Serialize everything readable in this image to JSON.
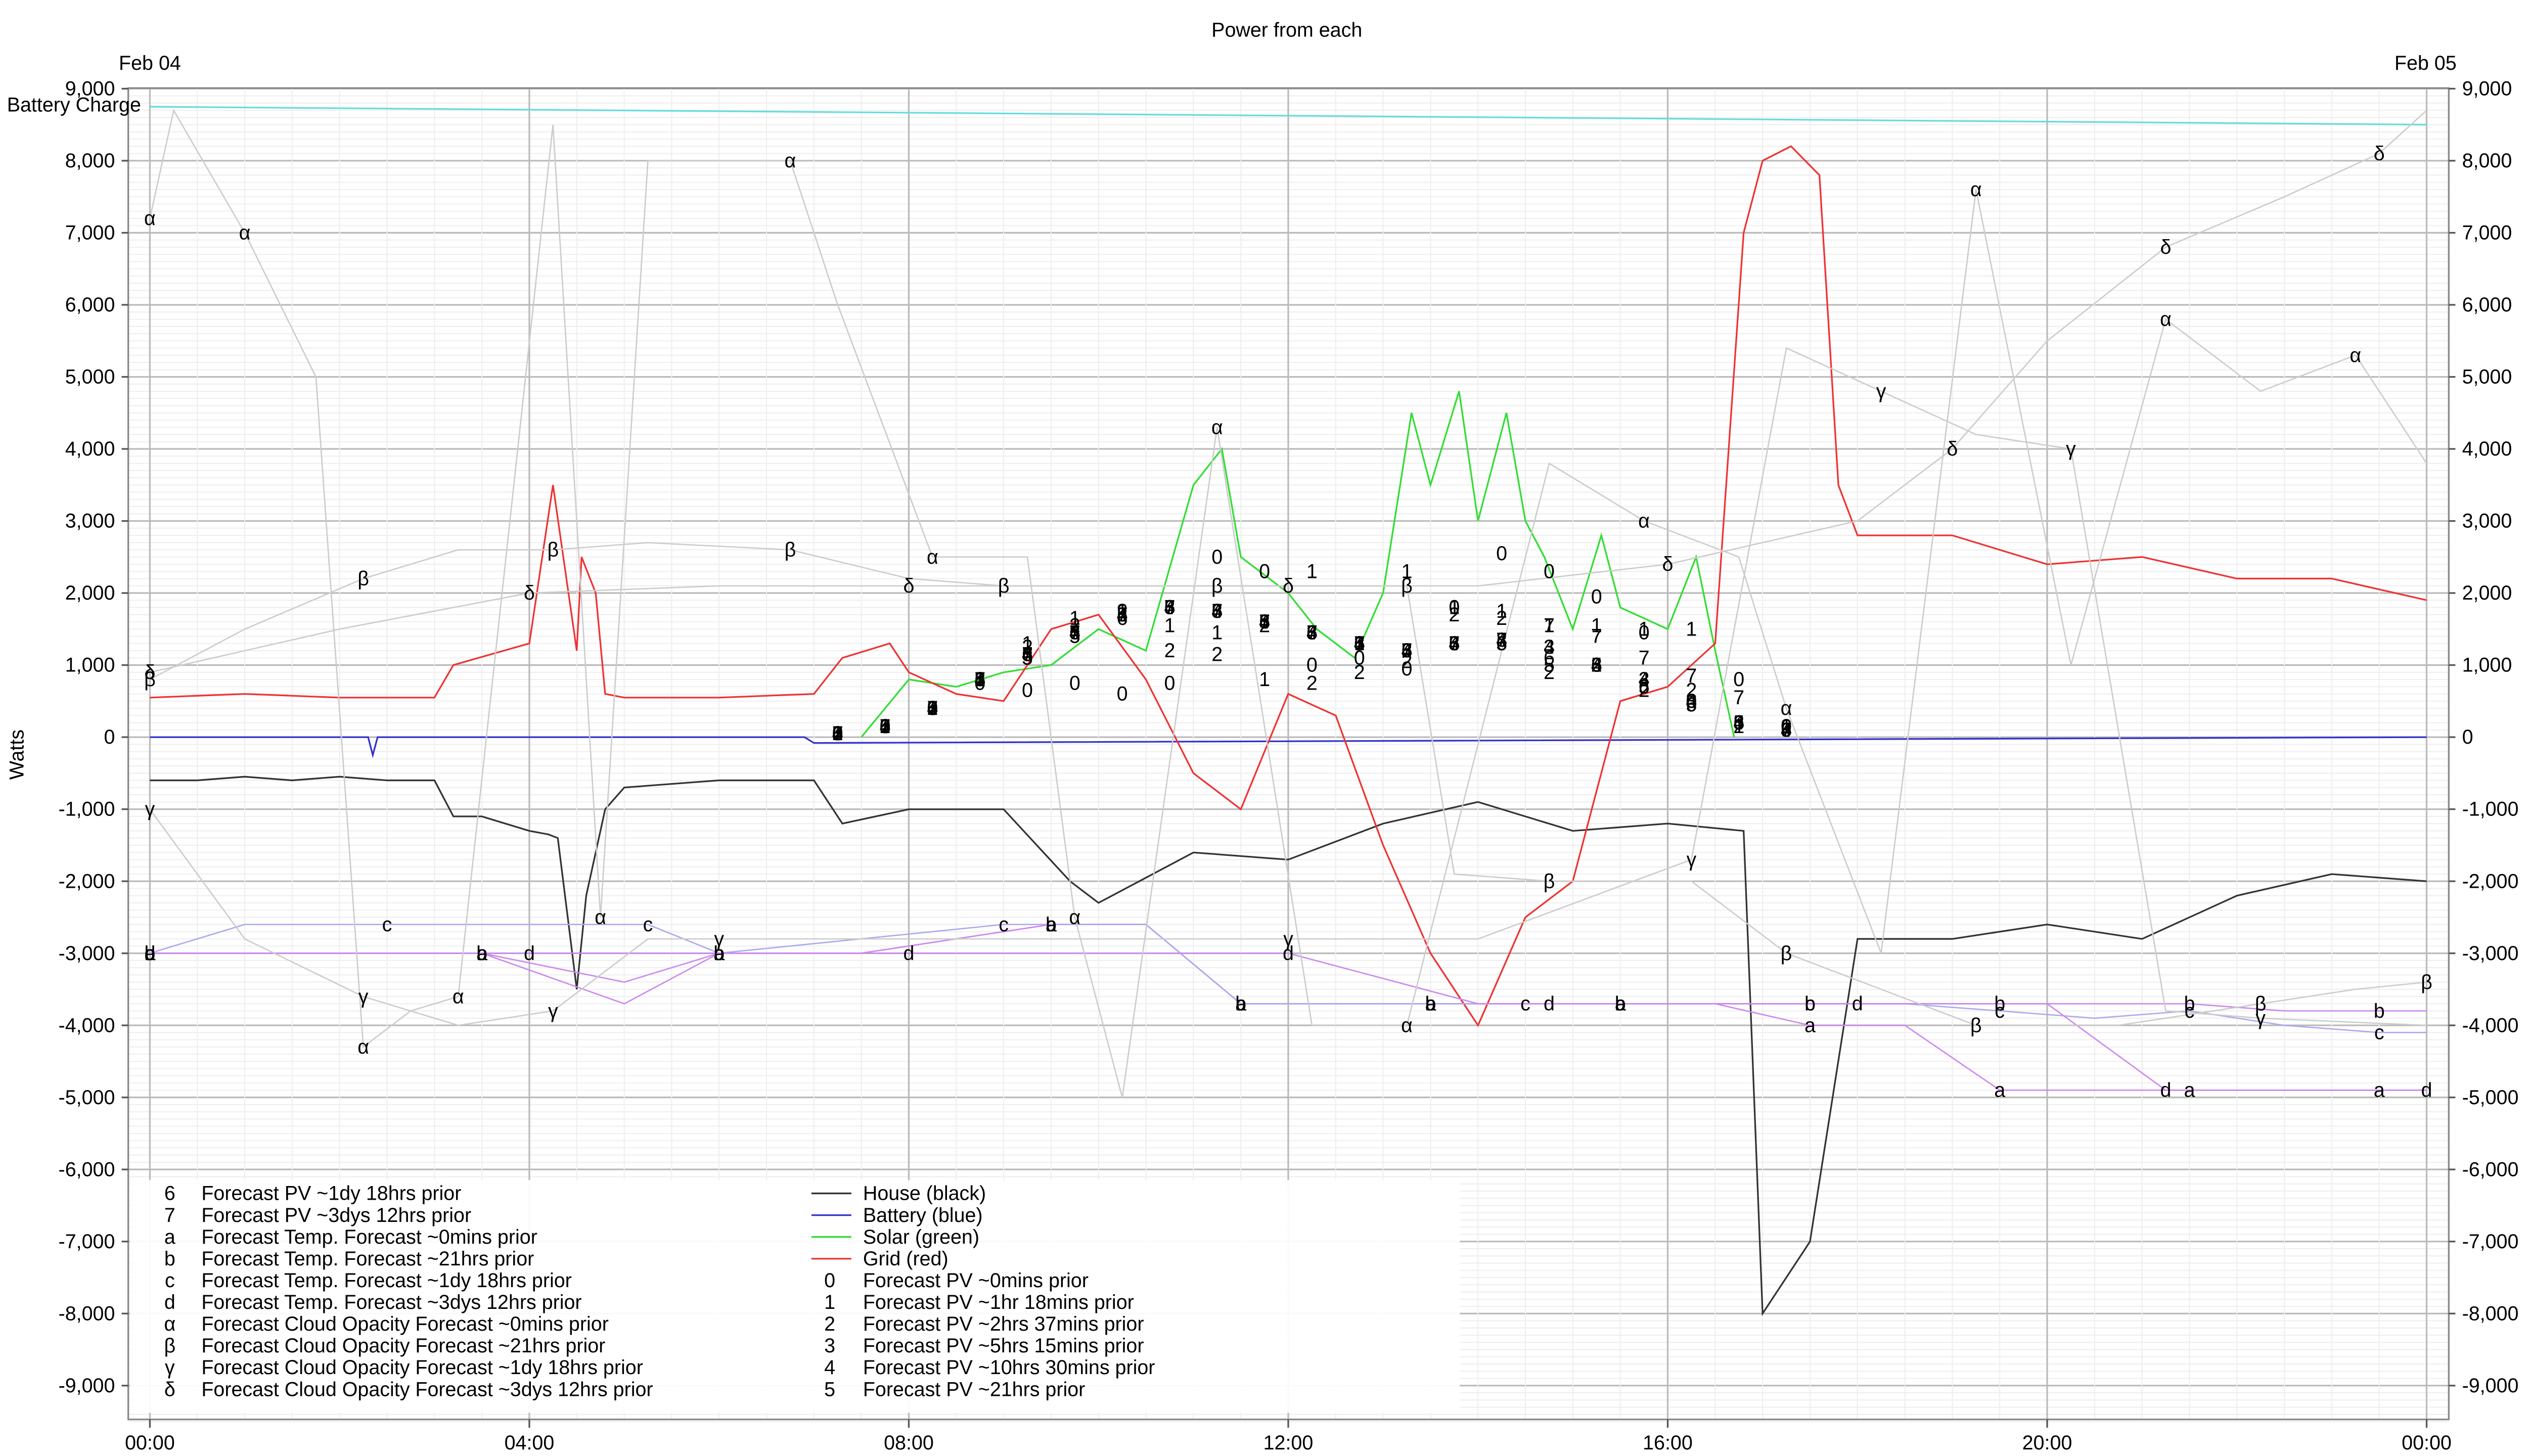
{
  "chart_data": {
    "type": "line",
    "title": "Power from each",
    "xlabel": "",
    "ylabel": "Watts",
    "ylim": [
      -9500,
      9000
    ],
    "y_ticks": [
      9000,
      8000,
      7000,
      6000,
      5000,
      4000,
      3000,
      2000,
      1000,
      0,
      -1000,
      -2000,
      -3000,
      -4000,
      -5000,
      -6000,
      -7000,
      -8000,
      -9000
    ],
    "y_tick_labels": [
      "9,000",
      "8,000",
      "7,000",
      "6,000",
      "5,000",
      "4,000",
      "3,000",
      "2,000",
      "1,000",
      "0",
      "-1,000",
      "-2,000",
      "-3,000",
      "-4,000",
      "-5,000",
      "-6,000",
      "-7,000",
      "-8,000",
      "-9,000"
    ],
    "xlim_hours": [
      0,
      24.05
    ],
    "x_ticks_hours": [
      0,
      4,
      8,
      12,
      16,
      20,
      24
    ],
    "x_tick_labels": [
      "00:00",
      "04:00",
      "08:00",
      "12:00",
      "16:00",
      "20:00",
      "00:00"
    ],
    "date_left": "Feb 04",
    "date_right": "Feb 05",
    "battery_label": "Battery Charge",
    "grid": true,
    "legend_placement": "bottom-left",
    "series": [
      {
        "name": "House (black)",
        "color": "#333333",
        "glyph": "",
        "x": [
          0,
          0.5,
          1.0,
          1.5,
          2.0,
          2.5,
          3.0,
          3.2,
          3.5,
          4.0,
          4.2,
          4.3,
          4.5,
          4.6,
          4.8,
          5.0,
          6.0,
          7.0,
          7.3,
          8.0,
          9.0,
          9.7,
          10.0,
          11.0,
          12.0,
          13.0,
          14.0,
          15.0,
          16.0,
          16.8,
          17.0,
          17.5,
          18.0,
          19.0,
          20.0,
          21.0,
          22.0,
          23.0,
          24.0
        ],
        "y": [
          -600,
          -600,
          -550,
          -600,
          -550,
          -600,
          -600,
          -1100,
          -1100,
          -1300,
          -1350,
          -1400,
          -3500,
          -2200,
          -1000,
          -700,
          -600,
          -600,
          -1200,
          -1000,
          -1000,
          -2000,
          -2300,
          -1600,
          -1700,
          -1200,
          -900,
          -1300,
          -1200,
          -1300,
          -8000,
          -7000,
          -2800,
          -2800,
          -2600,
          -2800,
          -2200,
          -1900,
          -2000
        ]
      },
      {
        "name": "Battery (blue)",
        "color": "#3333cc",
        "glyph": "",
        "x": [
          0,
          2.3,
          2.35,
          2.4,
          6.9,
          7.0,
          24.0
        ],
        "y": [
          0,
          0,
          -250,
          0,
          0,
          -80,
          0
        ]
      },
      {
        "name": "Solar (green)",
        "color": "#33dd33",
        "glyph": "",
        "x": [
          7.5,
          8.0,
          8.5,
          9.0,
          9.5,
          10.0,
          10.5,
          11.0,
          11.3,
          11.5,
          12.0,
          12.3,
          12.7,
          13.0,
          13.3,
          13.5,
          13.8,
          14.0,
          14.3,
          14.5,
          14.7,
          15.0,
          15.3,
          15.5,
          16.0,
          16.3,
          16.5,
          16.7
        ],
        "y": [
          0,
          800,
          700,
          900,
          1000,
          1500,
          1200,
          3500,
          4000,
          2500,
          2000,
          1500,
          1100,
          2000,
          4500,
          3500,
          4800,
          3000,
          4500,
          3000,
          2500,
          1500,
          2800,
          1800,
          1500,
          2500,
          1200,
          0
        ]
      },
      {
        "name": "Grid (red)",
        "color": "#ee3333",
        "glyph": "",
        "x": [
          0,
          1.0,
          2.0,
          3.0,
          3.2,
          4.0,
          4.25,
          4.5,
          4.55,
          4.7,
          4.8,
          5.0,
          6.0,
          7.0,
          7.3,
          7.8,
          8.0,
          8.5,
          9.0,
          9.5,
          10.0,
          10.5,
          11.0,
          11.5,
          12.0,
          12.5,
          13.0,
          13.5,
          14.0,
          14.5,
          15.0,
          15.5,
          16.0,
          16.5,
          16.8,
          17.0,
          17.3,
          17.6,
          17.8,
          18.0,
          19.0,
          20.0,
          21.0,
          22.0,
          23.0,
          24.0
        ],
        "y": [
          550,
          600,
          550,
          550,
          1000,
          1300,
          3500,
          1200,
          2500,
          2000,
          600,
          550,
          550,
          600,
          1100,
          1300,
          900,
          600,
          500,
          1500,
          1700,
          800,
          -500,
          -1000,
          600,
          300,
          -1500,
          -3000,
          -4000,
          -2500,
          -2000,
          500,
          700,
          1300,
          7000,
          8000,
          8200,
          7800,
          3500,
          2800,
          2800,
          2400,
          2500,
          2200,
          2200,
          1900
        ]
      },
      {
        "name": "Forecast PV ~0mins prior",
        "color": "#000000",
        "glyph": "0",
        "x": [
          7.25,
          7.75,
          8.25,
          8.75,
          9.25,
          9.75,
          10.25,
          10.75,
          11.25,
          11.75,
          12.25,
          12.75,
          13.25,
          13.75,
          14.25,
          14.75,
          15.25,
          15.75,
          16.25,
          16.75,
          17.25
        ],
        "y": [
          50,
          150,
          400,
          750,
          650,
          750,
          600,
          750,
          2500,
          2300,
          1000,
          1100,
          950,
          1800,
          2550,
          2300,
          1950,
          1450,
          500,
          800,
          150
        ]
      },
      {
        "name": "Forecast PV ~1hr 18mins prior",
        "color": "#000000",
        "glyph": "1",
        "x": [
          7.25,
          7.75,
          8.25,
          8.75,
          9.25,
          9.75,
          10.25,
          10.75,
          11.25,
          11.75,
          12.25,
          12.75,
          13.25,
          13.75,
          14.25,
          14.75,
          15.25,
          15.75,
          16.25,
          16.75,
          17.25
        ],
        "y": [
          50,
          150,
          400,
          800,
          1300,
          1650,
          1750,
          1550,
          1450,
          800,
          2300,
          1300,
          2300,
          1800,
          1750,
          1550,
          1550,
          1500,
          1500,
          150,
          150
        ]
      },
      {
        "name": "Forecast PV ~2hrs 37mins prior",
        "color": "#000000",
        "glyph": "2",
        "x": [
          7.25,
          7.75,
          8.25,
          8.75,
          9.25,
          9.75,
          10.25,
          10.75,
          11.25,
          11.75,
          12.25,
          12.75,
          13.25,
          13.75,
          14.25,
          14.75,
          15.25,
          15.75,
          16.25,
          16.75,
          17.25
        ],
        "y": [
          50,
          150,
          400,
          800,
          1250,
          1550,
          1750,
          1200,
          1150,
          1550,
          750,
          900,
          1050,
          1700,
          1650,
          900,
          1000,
          650,
          650,
          150,
          150
        ]
      },
      {
        "name": "Forecast PV ~5hrs 15mins prior",
        "color": "#000000",
        "glyph": "3",
        "x": [
          7.25,
          7.75,
          8.25,
          8.75,
          9.25,
          9.75,
          10.25,
          10.75,
          11.25,
          11.75,
          12.25,
          12.75,
          13.25,
          13.75,
          14.25,
          14.75,
          15.25,
          15.75,
          16.25,
          16.75,
          17.25
        ],
        "y": [
          50,
          150,
          400,
          800,
          1150,
          1450,
          1700,
          1800,
          1750,
          1600,
          1450,
          1300,
          1200,
          1300,
          1350,
          1250,
          1000,
          800,
          500,
          200,
          100
        ]
      },
      {
        "name": "Forecast PV ~10hrs 30mins prior",
        "color": "#000000",
        "glyph": "4",
        "x": [
          7.25,
          7.75,
          8.25,
          8.75,
          9.25,
          9.75,
          10.25,
          10.75,
          11.25,
          11.75,
          12.25,
          12.75,
          13.25,
          13.75,
          14.25,
          14.75,
          15.25,
          15.75,
          16.25,
          16.75,
          17.25
        ],
        "y": [
          50,
          150,
          400,
          800,
          1150,
          1450,
          1700,
          1800,
          1750,
          1600,
          1450,
          1300,
          1200,
          1300,
          1350,
          1250,
          1000,
          800,
          500,
          200,
          100
        ]
      },
      {
        "name": "Forecast PV ~21hrs prior",
        "color": "#000000",
        "glyph": "5",
        "x": [
          7.25,
          7.75,
          8.25,
          8.75,
          9.25,
          9.75,
          10.25,
          10.75,
          11.25,
          11.75,
          12.25,
          12.75,
          13.25,
          13.75,
          14.25,
          14.75,
          15.25,
          15.75,
          16.25,
          16.75,
          17.25
        ],
        "y": [
          50,
          150,
          400,
          800,
          1100,
          1400,
          1700,
          1800,
          1750,
          1600,
          1450,
          1300,
          1200,
          1300,
          1300,
          1000,
          1000,
          700,
          450,
          200,
          100
        ]
      },
      {
        "name": "Forecast PV ~1dy 18hrs prior",
        "color": "#000000",
        "glyph": "6",
        "x": [
          7.25,
          7.75,
          8.25,
          8.75,
          9.25,
          9.75,
          10.25,
          10.75,
          11.25,
          11.75,
          12.25,
          12.75,
          13.25,
          13.75,
          14.25,
          14.75,
          15.25,
          15.75,
          16.25,
          16.75,
          17.25
        ],
        "y": [
          50,
          150,
          400,
          800,
          1150,
          1450,
          1650,
          1800,
          1750,
          1600,
          1450,
          1300,
          1200,
          1300,
          1300,
          1100,
          1000,
          700,
          450,
          200,
          100
        ]
      },
      {
        "name": "Forecast PV ~3dys 12hrs prior",
        "color": "#000000",
        "glyph": "7",
        "x": [
          7.25,
          7.75,
          8.25,
          8.75,
          9.25,
          9.75,
          10.25,
          10.75,
          11.25,
          11.75,
          12.25,
          12.75,
          13.25,
          13.75,
          14.25,
          14.75,
          15.25,
          15.75,
          16.25,
          16.75,
          17.25
        ],
        "y": [
          50,
          150,
          400,
          800,
          1150,
          1450,
          1700,
          1800,
          1750,
          1600,
          1450,
          1300,
          1200,
          1300,
          1350,
          1550,
          1400,
          1100,
          850,
          550,
          100
        ]
      },
      {
        "name": "Forecast Temp. Forecast ~0mins prior",
        "color": "#cc88ee",
        "glyph": "a",
        "x": [
          0,
          1.5,
          3.5,
          5.0,
          6.0,
          7.5,
          9.5,
          10.5,
          11.5,
          12.5,
          13.5,
          14.5,
          15.5,
          16.5,
          17.5,
          18.5,
          19.5,
          20.5,
          21.5,
          22.5,
          23.5,
          24.0
        ],
        "y": [
          -3000,
          -3000,
          -3000,
          -3700,
          -3000,
          -3000,
          -2600,
          -2600,
          -3700,
          -3700,
          -3700,
          -3700,
          -3700,
          -3700,
          -4000,
          -4000,
          -4900,
          -4900,
          -4900,
          -4900,
          -4900,
          -4900
        ]
      },
      {
        "name": "Forecast Temp. Forecast ~21hrs prior",
        "color": "#cc88ee",
        "glyph": "b",
        "x": [
          0,
          1.5,
          3.5,
          5.0,
          6.0,
          7.5,
          9.5,
          10.5,
          11.5,
          12.5,
          13.5,
          14.5,
          15.5,
          16.5,
          17.5,
          18.5,
          19.5,
          20.5,
          21.5,
          22.5,
          23.5,
          24.0
        ],
        "y": [
          -3000,
          -3000,
          -3000,
          -3400,
          -3000,
          -3000,
          -2600,
          -2600,
          -3700,
          -3700,
          -3700,
          -3700,
          -3700,
          -3700,
          -3700,
          -3700,
          -3700,
          -3700,
          -3700,
          -3800,
          -3800,
          -3800
        ]
      },
      {
        "name": "Forecast Temp. Forecast ~1dy 18hrs prior",
        "color": "#aaaaee",
        "glyph": "c",
        "x": [
          0,
          1.0,
          2.5,
          4.0,
          5.25,
          6.0,
          9.0,
          10.5,
          11.5,
          13.0,
          14.5,
          16.0,
          17.5,
          18.5,
          19.5,
          20.5,
          21.5,
          22.5,
          23.5,
          24.0
        ],
        "y": [
          -3000,
          -2600,
          -2600,
          -2600,
          -2600,
          -3000,
          -2600,
          -2600,
          -3700,
          -3700,
          -3700,
          -3700,
          -3700,
          -3700,
          -3800,
          -3900,
          -3800,
          -4000,
          -4100,
          -4100
        ]
      },
      {
        "name": "Forecast Temp. Forecast ~3dys 12hrs prior",
        "color": "#cc88ee",
        "glyph": "d",
        "x": [
          0,
          2.0,
          4.0,
          6.0,
          8.0,
          10.0,
          12.0,
          14.0,
          14.75,
          16.0,
          18.0,
          20.0,
          21.25,
          22.5,
          24.0
        ],
        "y": [
          -3000,
          -3000,
          -3000,
          -3000,
          -3000,
          -3000,
          -3000,
          -3700,
          -3700,
          -3700,
          -3700,
          -3700,
          -4900,
          -4900,
          -4900
        ]
      },
      {
        "name": "Forecast Cloud Opacity Forecast ~0mins prior",
        "color": "#cccccc",
        "glyph": "α",
        "x": [
          0,
          0.25,
          1.0,
          1.75,
          2.25,
          2.75,
          3.25,
          4.25,
          4.75,
          5.25,
          6.75,
          7.25,
          8.25,
          9.25,
          9.75,
          10.25,
          11.25,
          12.25,
          13.25,
          14.75,
          15.75,
          16.75,
          17.25,
          18.25,
          19.25,
          20.25,
          21.25,
          22.25,
          23.25,
          24.0
        ],
        "y": [
          7200,
          8700,
          7000,
          5000,
          -4300,
          -3800,
          -3600,
          8500,
          -2500,
          8000,
          8000,
          6000,
          2500,
          2500,
          -2500,
          -5000,
          4300,
          -4000,
          -4000,
          3800,
          3000,
          2500,
          400,
          -3000,
          7600,
          1000,
          5800,
          4800,
          5300,
          3800
        ]
      },
      {
        "name": "Forecast Cloud Opacity Forecast ~21hrs prior",
        "color": "#cccccc",
        "glyph": "β",
        "x": [
          0,
          1.0,
          2.25,
          3.25,
          4.25,
          5.25,
          6.75,
          8.0,
          9.0,
          10.25,
          11.25,
          12.25,
          13.25,
          13.75,
          14.75,
          16.25,
          17.25,
          18.25,
          19.25,
          20.75,
          22.25,
          23.25,
          24.0
        ],
        "y": [
          800,
          1500,
          2200,
          2600,
          2600,
          2700,
          2600,
          2200,
          2100,
          2100,
          2100,
          2100,
          2100,
          -1900,
          -2000,
          -2000,
          -3000,
          -3500,
          -4000,
          -4000,
          -3700,
          -3500,
          -3400
        ]
      },
      {
        "name": "Forecast Cloud Opacity Forecast ~1dy 18hrs prior",
        "color": "#cccccc",
        "glyph": "γ",
        "x": [
          0,
          1.0,
          2.25,
          3.25,
          4.25,
          5.25,
          6.0,
          9.0,
          12.0,
          14.0,
          16.25,
          17.25,
          18.25,
          19.25,
          20.25,
          21.25,
          22.25,
          24.0
        ],
        "y": [
          -1000,
          -2800,
          -3600,
          -4000,
          -3800,
          -2800,
          -2800,
          -2800,
          -2800,
          -2800,
          -1700,
          5400,
          4800,
          4200,
          4000,
          -3800,
          -3900,
          -4000
        ]
      },
      {
        "name": "Forecast Cloud Opacity Forecast ~3dys 12hrs prior",
        "color": "#cccccc",
        "glyph": "δ",
        "x": [
          0,
          2.0,
          4.0,
          6.0,
          8.0,
          10.0,
          12.0,
          14.0,
          16.0,
          18.0,
          19.0,
          20.0,
          21.25,
          22.5,
          23.5,
          24.0
        ],
        "y": [
          900,
          1500,
          2000,
          2100,
          2100,
          2100,
          2100,
          2100,
          2400,
          3000,
          4000,
          5500,
          6800,
          7500,
          8100,
          8700
        ]
      }
    ],
    "battery_charge": {
      "name": "Battery Charge",
      "color": "#66dddd",
      "x": [
        0,
        24.0
      ],
      "y": [
        8750,
        8500
      ]
    }
  }
}
